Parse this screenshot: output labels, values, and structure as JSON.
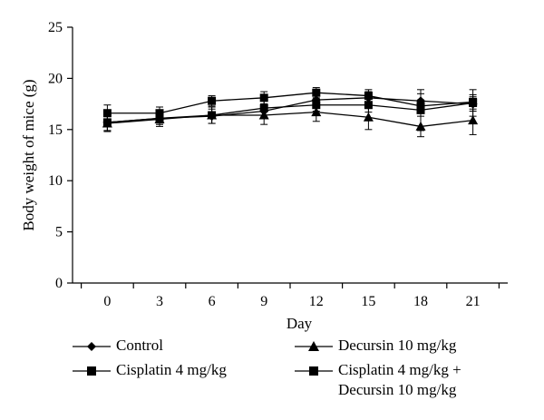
{
  "chart_data": {
    "type": "line",
    "title": "",
    "xlabel": "Day",
    "ylabel": "Body weight of mice (g)",
    "x": [
      0,
      3,
      6,
      9,
      12,
      15,
      18,
      21
    ],
    "xlim": [
      -2,
      23
    ],
    "ylim": [
      0,
      25
    ],
    "yticks": [
      0,
      5,
      10,
      15,
      20,
      25
    ],
    "grid": false,
    "legend_position": "bottom",
    "series": [
      {
        "name": "Control",
        "marker": "diamond",
        "values": [
          15.7,
          16.1,
          16.3,
          16.8,
          17.9,
          18.1,
          17.8,
          17.5
        ],
        "errors": [
          0.8,
          0.6,
          0.7,
          0.7,
          0.6,
          0.6,
          0.7,
          0.7
        ]
      },
      {
        "name": "Decursin 10 mg/kg",
        "marker": "triangle",
        "values": [
          15.6,
          16.0,
          16.4,
          16.4,
          16.7,
          16.2,
          15.3,
          15.9
        ],
        "errors": [
          0.8,
          0.7,
          0.8,
          0.9,
          0.9,
          1.2,
          1.0,
          1.4
        ]
      },
      {
        "name": "Cisplatin 4 mg/kg",
        "marker": "square",
        "values": [
          16.6,
          16.6,
          17.8,
          18.1,
          18.6,
          18.3,
          17.3,
          17.7
        ],
        "errors": [
          0.8,
          0.6,
          0.5,
          0.6,
          0.5,
          0.6,
          0.6,
          0.7
        ]
      },
      {
        "name": "Cisplatin 4 mg/kg + Decursin 10 mg/kg",
        "marker": "square",
        "values": [
          15.7,
          16.1,
          16.4,
          17.1,
          17.4,
          17.4,
          16.9,
          17.6
        ],
        "errors": [
          0.8,
          0.6,
          0.8,
          0.9,
          0.6,
          0.7,
          2.0,
          1.3
        ]
      }
    ],
    "legend": [
      {
        "label": "Control",
        "marker": "diamond"
      },
      {
        "label": "Decursin 10 mg/kg",
        "marker": "triangle"
      },
      {
        "label": "Cisplatin 4 mg/kg",
        "marker": "square"
      },
      {
        "label": "Cisplatin 4 mg/kg +",
        "label_cont": "Decursin 10 mg/kg",
        "marker": "square"
      }
    ]
  }
}
